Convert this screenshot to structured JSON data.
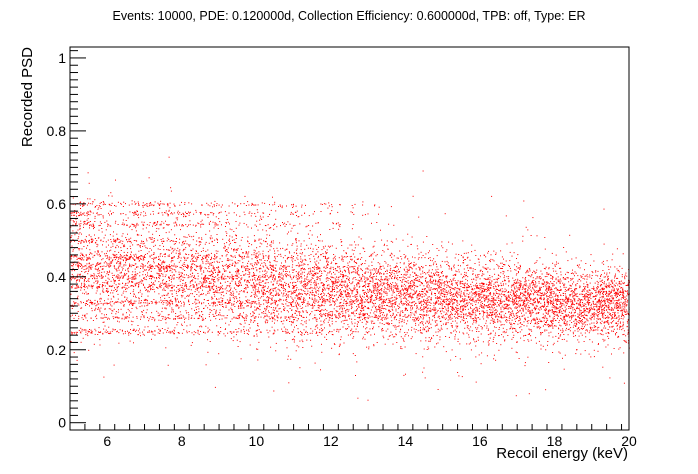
{
  "chart_data": {
    "type": "scatter",
    "title": "Events: 10000, PDE: 0.120000d, Collection Efficiency: 0.600000d, TPB: off, Type: ER",
    "xlabel": "Recoil energy (keV)",
    "ylabel": "Recorded PSD",
    "xlim": [
      5,
      20
    ],
    "ylim": [
      -0.02,
      1.03
    ],
    "x_ticks": [
      6,
      8,
      10,
      12,
      14,
      16,
      18,
      20
    ],
    "x_tick_labels": [
      "6",
      "8",
      "10",
      "12",
      "14",
      "16",
      "18",
      "20"
    ],
    "y_ticks": [
      0,
      0.2,
      0.4,
      0.6,
      0.8,
      1
    ],
    "y_tick_labels": [
      "0",
      "0.2",
      "0.4",
      "0.6",
      "0.8",
      "1"
    ],
    "marker_color": "#ff0000",
    "grid": false,
    "legend": "none",
    "series": [
      {
        "events": 10000,
        "band_mean_psd": [
          [
            5.0,
            0.43
          ],
          [
            7.0,
            0.41
          ],
          [
            9.0,
            0.39
          ],
          [
            11.0,
            0.37
          ],
          [
            13.0,
            0.355
          ],
          [
            15.0,
            0.345
          ],
          [
            17.0,
            0.335
          ],
          [
            20.0,
            0.325
          ]
        ],
        "band_spread_psd": [
          [
            5.0,
            0.12
          ],
          [
            8.0,
            0.1
          ],
          [
            12.0,
            0.085
          ],
          [
            16.0,
            0.07
          ],
          [
            20.0,
            0.065
          ]
        ],
        "discrete_psd_levels_low_energy": [
          0.25,
          0.29,
          0.33,
          0.375,
          0.4,
          0.43,
          0.455,
          0.5,
          0.545,
          0.575,
          0.6
        ]
      }
    ]
  },
  "colors": {
    "markers": "#ff0000",
    "axes": "#000000",
    "background": "#ffffff"
  }
}
